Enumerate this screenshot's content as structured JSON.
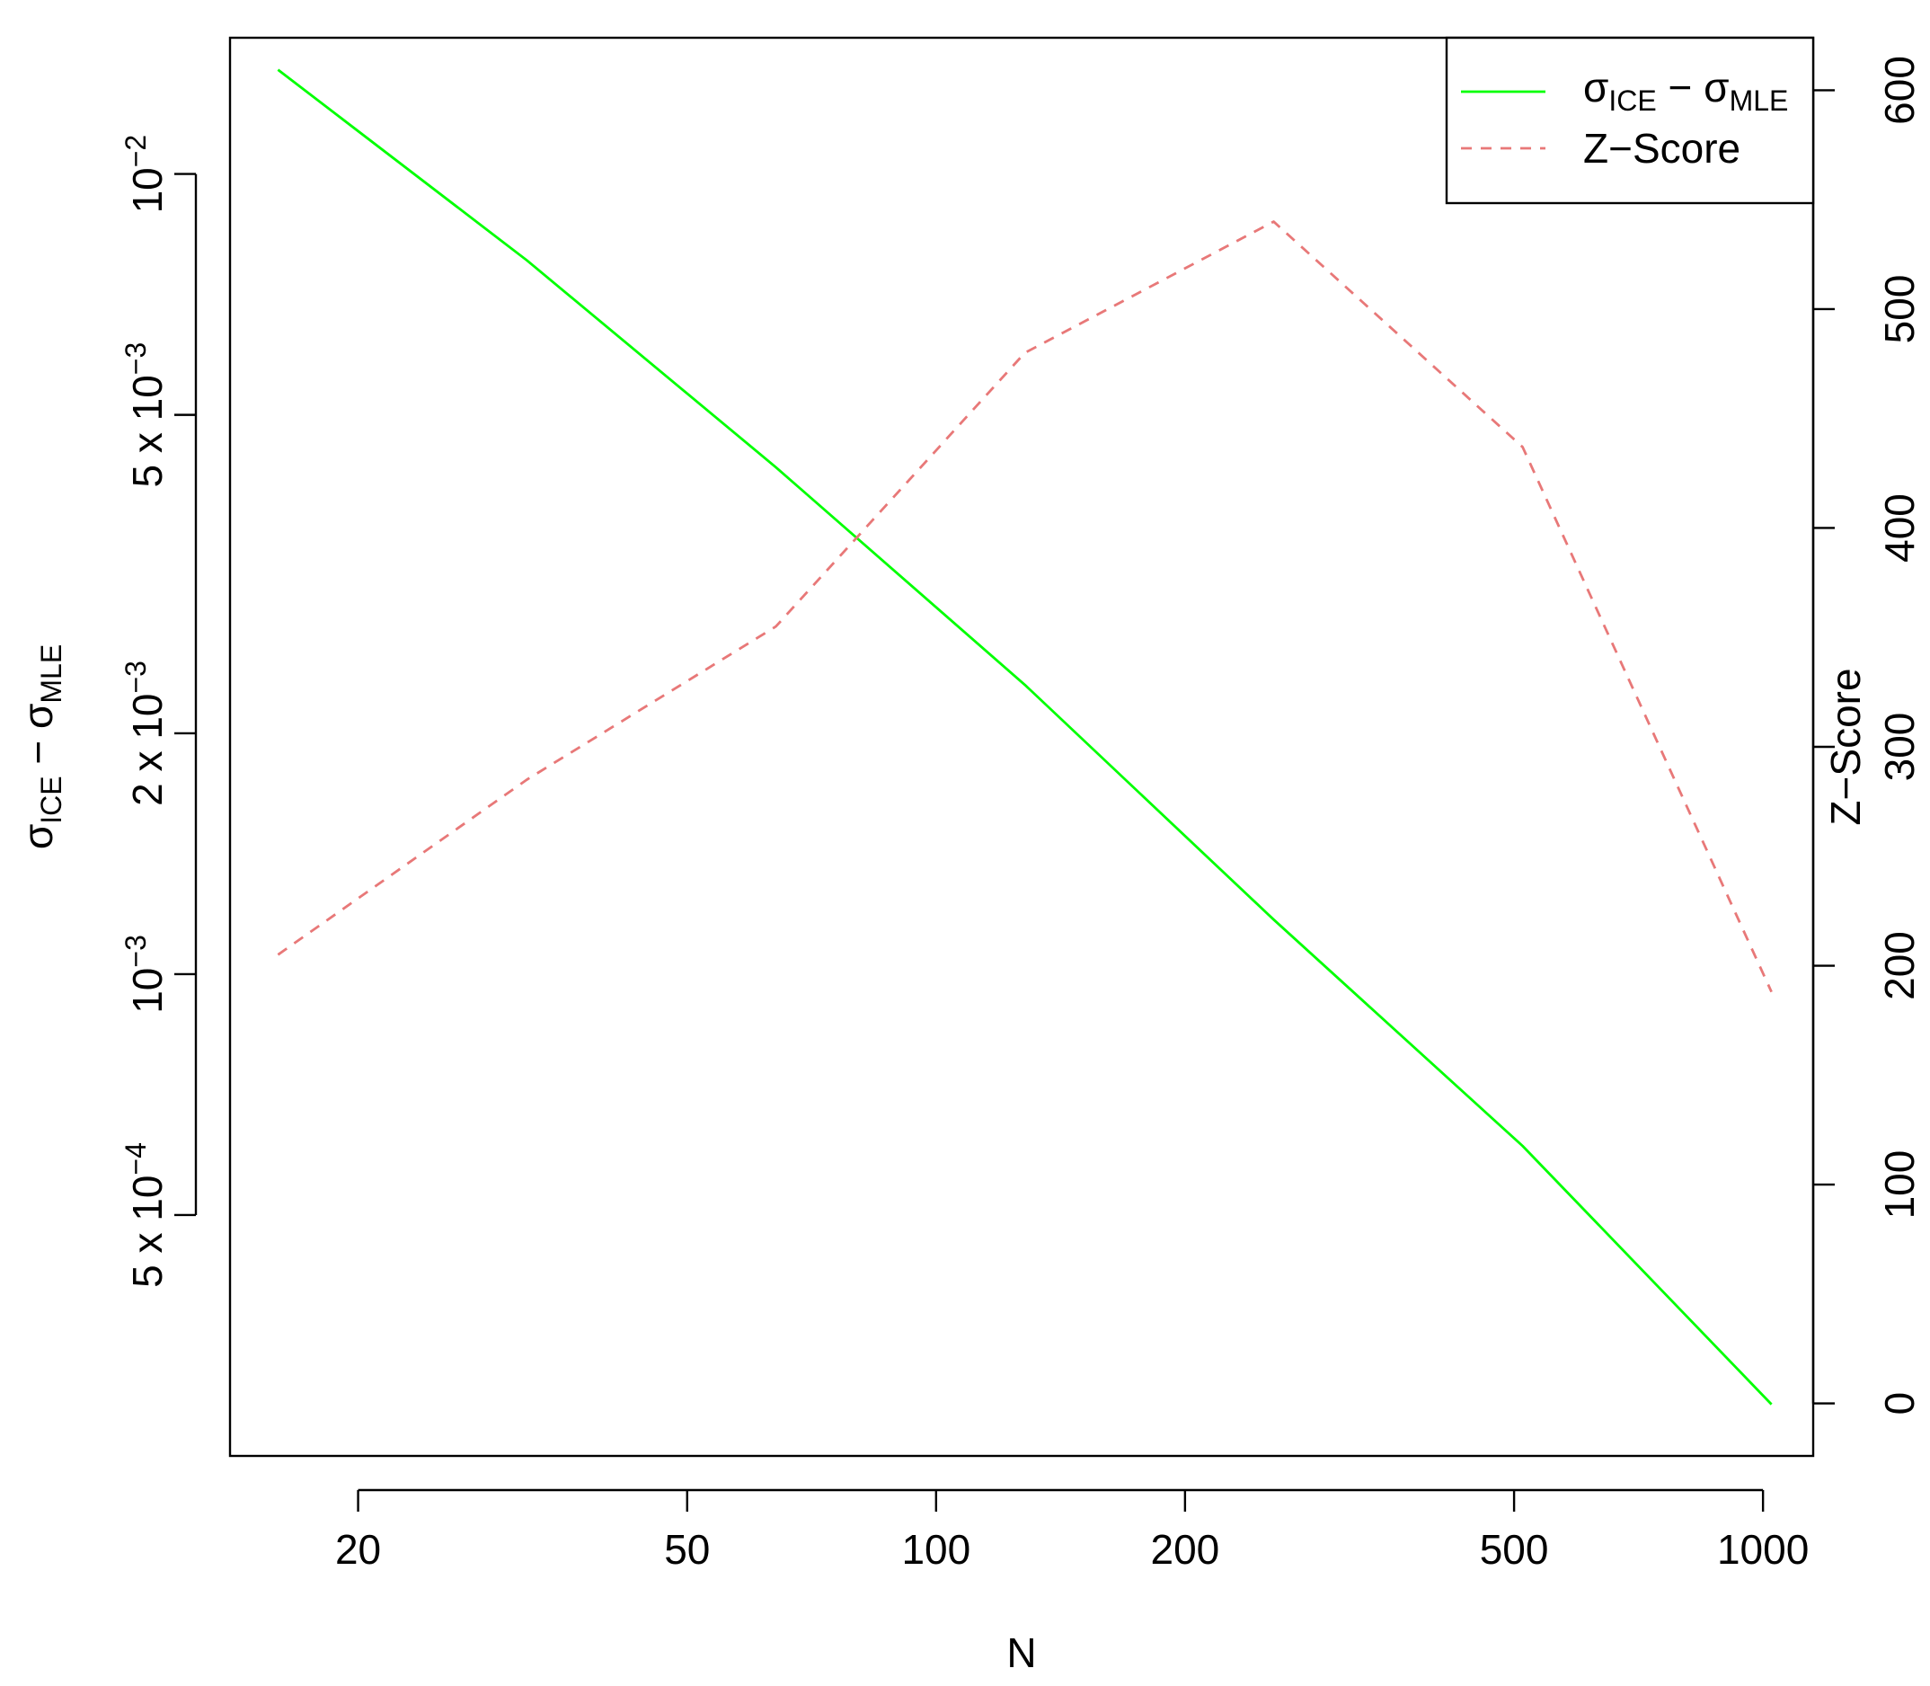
{
  "chart_data": {
    "type": "line",
    "xlabel": "N",
    "ylabel_left": "σ_ICE − σ_MLE",
    "ylabel_right": "Z−Score",
    "x_log": true,
    "y_left_log": true,
    "xlim": [
      14,
      1150
    ],
    "ylim_left": [
      0.00025,
      0.0148
    ],
    "ylim_right": [
      -24,
      624
    ],
    "x_ticks": [
      {
        "value": 20,
        "label": "20"
      },
      {
        "value": 50,
        "label": "50"
      },
      {
        "value": 100,
        "label": "100"
      },
      {
        "value": 200,
        "label": "200"
      },
      {
        "value": 500,
        "label": "500"
      },
      {
        "value": 1000,
        "label": "1000"
      }
    ],
    "y_left_ticks": [
      {
        "value": 0.01,
        "label": "10^-2",
        "base": "10",
        "exp": "−2"
      },
      {
        "value": 0.005,
        "label": "5 x 10^-3",
        "base": "5 x 10",
        "exp": "−3"
      },
      {
        "value": 0.002,
        "label": "2 x 10^-3",
        "base": "2 x 10",
        "exp": "−3"
      },
      {
        "value": 0.001,
        "label": "10^-3",
        "base": "10",
        "exp": "−3"
      },
      {
        "value": 0.0005,
        "label": "5 x 10^-4",
        "base": "5 x 10",
        "exp": "−4"
      }
    ],
    "y_right_ticks": [
      {
        "value": 0,
        "label": "0"
      },
      {
        "value": 100,
        "label": "100"
      },
      {
        "value": 200,
        "label": "200"
      },
      {
        "value": 300,
        "label": "300"
      },
      {
        "value": 400,
        "label": "400"
      },
      {
        "value": 500,
        "label": "500"
      },
      {
        "value": 600,
        "label": "600"
      }
    ],
    "series": [
      {
        "name": "σ_ICE − σ_MLE",
        "axis": "left",
        "color": "#00ff00",
        "style": "solid",
        "x": [
          16,
          32,
          64,
          128,
          256,
          512,
          1024
        ],
        "y": [
          0.0135,
          0.0078,
          0.0043,
          0.0023,
          0.00117,
          0.00061,
          0.00029
        ]
      },
      {
        "name": "Z−Score",
        "axis": "right",
        "color": "#e87878",
        "style": "dashed",
        "x": [
          16,
          32,
          64,
          128,
          256,
          512,
          1024
        ],
        "y": [
          205,
          285,
          355,
          480,
          540,
          437,
          188
        ]
      }
    ],
    "legend": {
      "position": "top-right",
      "entries": [
        {
          "base": "σ",
          "sub1": "ICE",
          "mid": " − σ",
          "sub2": "MLE"
        },
        {
          "text": "Z−Score"
        }
      ]
    },
    "grid": false
  }
}
